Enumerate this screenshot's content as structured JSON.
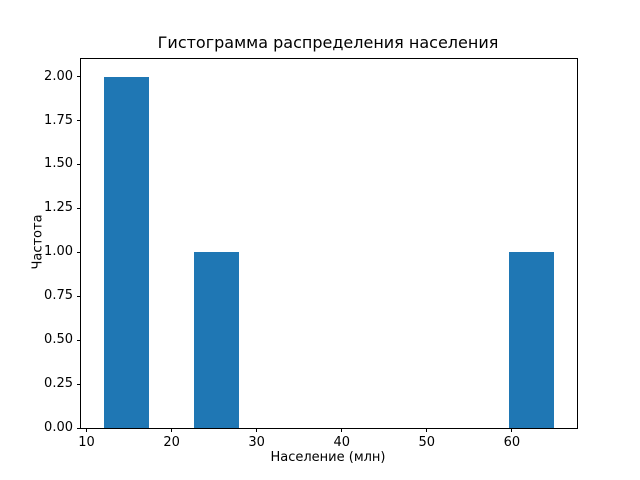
{
  "chart_data": {
    "type": "bar",
    "subtype": "histogram",
    "title": "Гистограмма распределения населения",
    "xlabel": "Население (млн)",
    "ylabel": "Частота",
    "bar_color": "#1f77b4",
    "axis_color": "#000000",
    "xlim": [
      9.35,
      67.65
    ],
    "ylim": [
      0,
      2.1
    ],
    "xticks": [
      10,
      20,
      30,
      40,
      50,
      60
    ],
    "yticks": [
      "0.00",
      "0.25",
      "0.50",
      "0.75",
      "1.00",
      "1.25",
      "1.50",
      "1.75",
      "2.00"
    ],
    "bin_edges": [
      12.0,
      17.3,
      22.6,
      27.9,
      33.2,
      38.5,
      43.8,
      49.1,
      54.4,
      59.7,
      65.0
    ],
    "counts": [
      2,
      0,
      1,
      0,
      0,
      0,
      0,
      0,
      0,
      1
    ],
    "legend": null,
    "grid": false
  }
}
